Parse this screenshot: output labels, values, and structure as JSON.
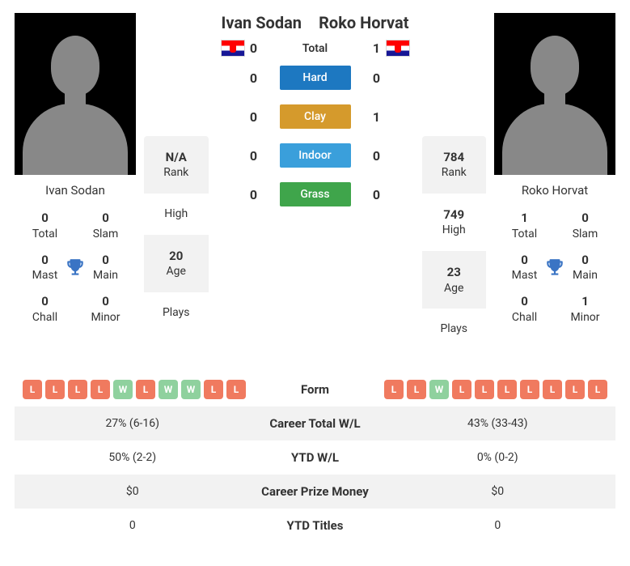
{
  "colors": {
    "hard": "#1d78c1",
    "clay": "#d59a2c",
    "indoor": "#3a9fdb",
    "grass": "#3fa54b",
    "form_w": "#8fd19e",
    "form_l": "#f07a5f",
    "trophy": "#3a74c4"
  },
  "player1": {
    "name": "Ivan Sodan",
    "flag": "croatia",
    "stats": {
      "total": {
        "val": "0",
        "lab": "Total"
      },
      "slam": {
        "val": "0",
        "lab": "Slam"
      },
      "mast": {
        "val": "0",
        "lab": "Mast"
      },
      "main": {
        "val": "0",
        "lab": "Main"
      },
      "chall": {
        "val": "0",
        "lab": "Chall"
      },
      "minor": {
        "val": "0",
        "lab": "Minor"
      }
    },
    "info": {
      "rank": "N/A",
      "rank_lab": "Rank",
      "high": "",
      "high_lab": "High",
      "age": "20",
      "age_lab": "Age",
      "plays": "",
      "plays_lab": "Plays"
    }
  },
  "player2": {
    "name": "Roko Horvat",
    "flag": "croatia",
    "stats": {
      "total": {
        "val": "1",
        "lab": "Total"
      },
      "slam": {
        "val": "0",
        "lab": "Slam"
      },
      "mast": {
        "val": "0",
        "lab": "Mast"
      },
      "main": {
        "val": "0",
        "lab": "Main"
      },
      "chall": {
        "val": "0",
        "lab": "Chall"
      },
      "minor": {
        "val": "1",
        "lab": "Minor"
      }
    },
    "info": {
      "rank": "784",
      "rank_lab": "Rank",
      "high": "749",
      "high_lab": "High",
      "age": "23",
      "age_lab": "Age",
      "plays": "",
      "plays_lab": "Plays"
    }
  },
  "h2h": {
    "total": {
      "label": "Total",
      "p1": "0",
      "p2": "1"
    },
    "hard": {
      "label": "Hard",
      "p1": "0",
      "p2": "0"
    },
    "clay": {
      "label": "Clay",
      "p1": "0",
      "p2": "1"
    },
    "indoor": {
      "label": "Indoor",
      "p1": "0",
      "p2": "0"
    },
    "grass": {
      "label": "Grass",
      "p1": "0",
      "p2": "0"
    }
  },
  "bottom": {
    "form_label": "Form",
    "form1": [
      "L",
      "L",
      "L",
      "L",
      "W",
      "L",
      "W",
      "W",
      "L",
      "L"
    ],
    "form2": [
      "L",
      "L",
      "W",
      "L",
      "L",
      "L",
      "L",
      "L",
      "L",
      "L"
    ],
    "career_wl": {
      "label": "Career Total W/L",
      "p1": "27% (6-16)",
      "p2": "43% (33-43)"
    },
    "ytd_wl": {
      "label": "YTD W/L",
      "p1": "50% (2-2)",
      "p2": "0% (0-2)"
    },
    "prize": {
      "label": "Career Prize Money",
      "p1": "$0",
      "p2": "$0"
    },
    "ytd_titles": {
      "label": "YTD Titles",
      "p1": "0",
      "p2": "0"
    }
  }
}
